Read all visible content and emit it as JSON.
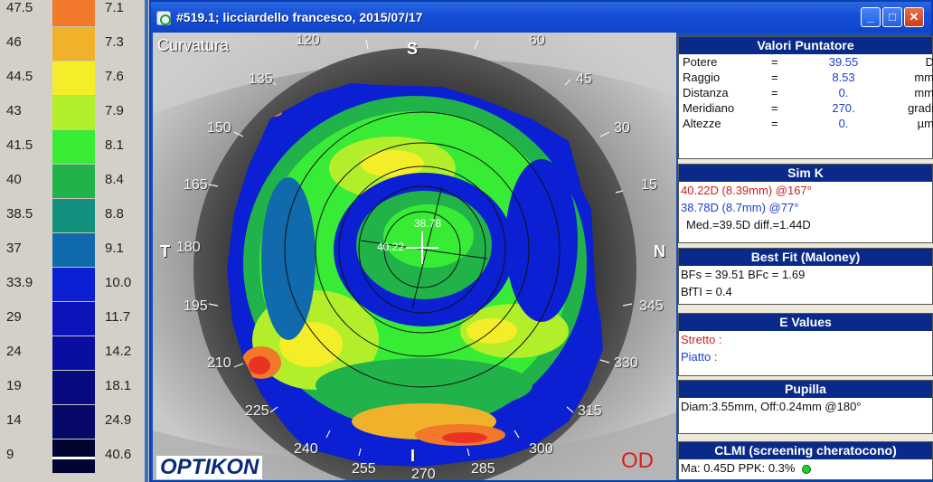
{
  "scale": [
    {
      "diopters": "47.5",
      "mm": "7.1",
      "color": "#f2782a"
    },
    {
      "diopters": "46",
      "mm": "7.3",
      "color": "#f0b22a"
    },
    {
      "diopters": "44.5",
      "mm": "7.6",
      "color": "#f4ee28"
    },
    {
      "diopters": "43",
      "mm": "7.9",
      "color": "#b2ee2a"
    },
    {
      "diopters": "41.5",
      "mm": "8.1",
      "color": "#38ec36"
    },
    {
      "diopters": "40",
      "mm": "8.4",
      "color": "#22b24a"
    },
    {
      "diopters": "38.5",
      "mm": "8.8",
      "color": "#14907e"
    },
    {
      "diopters": "37",
      "mm": "9.1",
      "color": "#106aac"
    },
    {
      "diopters": "33.9",
      "mm": "10.0",
      "color": "#0a20d2"
    },
    {
      "diopters": "29",
      "mm": "11.7",
      "color": "#0a14b8"
    },
    {
      "diopters": "24",
      "mm": "14.2",
      "color": "#0a0ea0"
    },
    {
      "diopters": "19",
      "mm": "18.1",
      "color": "#080a82"
    },
    {
      "diopters": "14",
      "mm": "24.9",
      "color": "#060868"
    },
    {
      "diopters": "9",
      "mm": "40.6",
      "color": "#040432"
    }
  ],
  "window": {
    "title": "#519.1; licciardello francesco, 2015/07/17",
    "buttons": {
      "minimize": "_",
      "maximize": "□",
      "close": "✕"
    }
  },
  "map": {
    "title": "Curvatura",
    "logo": "OPTIKON",
    "eye": "OD",
    "orientation": {
      "top": "S",
      "bottom": "I",
      "left": "T",
      "right": "N"
    },
    "meridians": [
      "120",
      "60",
      "135",
      "45",
      "150",
      "30",
      "165",
      "15",
      "180",
      "195",
      "345",
      "210",
      "330",
      "225",
      "315",
      "240",
      "300",
      "255",
      "270",
      "285"
    ],
    "center_values": {
      "upper": "38.78",
      "left": "40.22"
    }
  },
  "pointer": {
    "title": "Valori Puntatore",
    "rows": [
      {
        "label": "Potere",
        "eq": "=",
        "value": "39.55",
        "unit": "D"
      },
      {
        "label": "Raggio",
        "eq": "=",
        "value": "8.53",
        "unit": "mm"
      },
      {
        "label": "Distanza",
        "eq": "=",
        "value": "0.",
        "unit": "mm"
      },
      {
        "label": "Meridiano",
        "eq": "=",
        "value": "270.",
        "unit": "gradi"
      },
      {
        "label": "Altezze",
        "eq": "=",
        "value": "0.",
        "unit": "µm"
      }
    ]
  },
  "simk": {
    "title": "Sim K",
    "k1": "40.22D (8.39mm) @167°",
    "k2": "38.78D (8.7mm) @77°",
    "summary": "Med.=39.5D  diff.=1.44D"
  },
  "bestfit": {
    "title": "Best Fit (Maloney)",
    "line1": "BFs = 39.51 BFc = 1.69",
    "line2": "BfTI = 0.4"
  },
  "evalues": {
    "title": "E Values",
    "stretto": "Stretto :",
    "piatto": "Piatto    :"
  },
  "pupilla": {
    "title": "Pupilla",
    "line": "Diam:3.55mm, Off:0.24mm @180°"
  },
  "clmi": {
    "title": "CLMI (screening cheratocono)",
    "line": "Ma: 0.45D   PPK: 0.3%"
  }
}
